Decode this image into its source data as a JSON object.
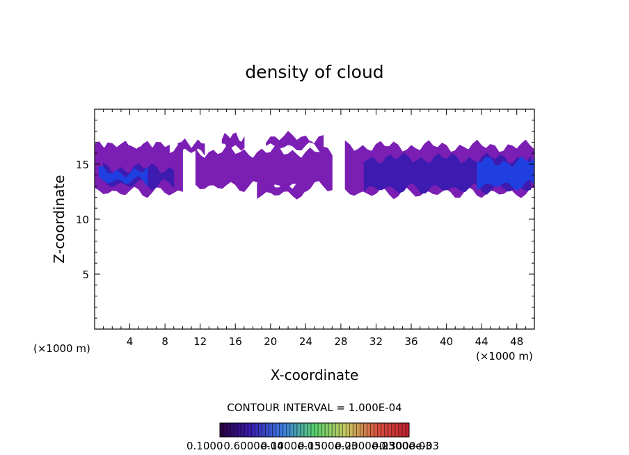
{
  "chart_data": {
    "type": "heatmap",
    "title": "density of cloud",
    "xlabel": "X-coordinate",
    "ylabel": "Z-coordinate",
    "x_unit": "(×1000 m)",
    "x_unit_right": "(×1000 m)",
    "xlim": [
      0,
      50
    ],
    "ylim": [
      0,
      20
    ],
    "x_ticks": [
      4,
      8,
      12,
      16,
      20,
      24,
      28,
      32,
      36,
      40,
      44,
      48
    ],
    "y_ticks": [
      5,
      10,
      15
    ],
    "contour_interval_text": "CONTOUR INTERVAL = 1.000E-04",
    "colorbar_labels": [
      "0.1000",
      "0.6000e-04",
      "0.1000e-03",
      "0.1500e-03",
      "0.2000e-03",
      "0.2500e-03",
      "0.3000e-03"
    ],
    "colorbar_stops": [
      "#2a0040",
      "#3a1eb0",
      "#3c7ce0",
      "#58d070",
      "#c8c860",
      "#d85040",
      "#c02030"
    ],
    "cloud_regions": [
      {
        "name": "left-band",
        "x": [
          0,
          10
        ],
        "z": [
          12.5,
          16.5
        ],
        "core": [
          13.2,
          14.6
        ]
      },
      {
        "name": "left-upper-shelf",
        "x": [
          0,
          8.5
        ],
        "z": [
          15.6,
          16.6
        ]
      },
      {
        "name": "small-blob-10",
        "x": [
          9.5,
          12.5
        ],
        "z": [
          16.2,
          17.0
        ]
      },
      {
        "name": "blob-15",
        "x": [
          14.5,
          17
        ],
        "z": [
          16.6,
          17.4
        ]
      },
      {
        "name": "mid-band",
        "x": [
          11.5,
          27
        ],
        "z": [
          13.0,
          16.1
        ]
      },
      {
        "name": "low-blob-21",
        "x": [
          18.5,
          24
        ],
        "z": [
          12.3,
          13.2
        ]
      },
      {
        "name": "upper-blob-20",
        "x": [
          19.5,
          26
        ],
        "z": [
          16.6,
          17.4
        ]
      },
      {
        "name": "right-band",
        "x": [
          28.5,
          50
        ],
        "z": [
          12.4,
          16.6
        ],
        "core": [
          12.8,
          15.5
        ]
      }
    ],
    "grid": false
  }
}
